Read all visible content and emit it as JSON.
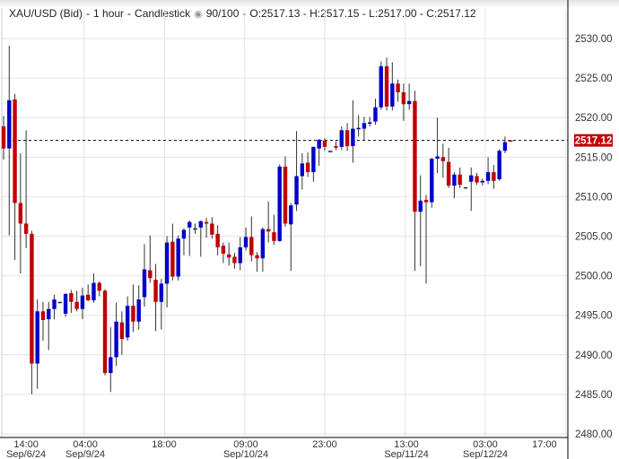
{
  "header": {
    "symbol": "XAU/USD (Bid)",
    "interval": "1 hour",
    "chart_style": "Candlestick",
    "visibility_icon": "eye-icon",
    "range": "90/100",
    "ohlc": "O:2517.13 - H:2517.15 - L:2517.00 - C:2517.12"
  },
  "colors": {
    "up": "#0000cc",
    "down": "#c00000",
    "wick": "#333333",
    "grid": "#e4e4e4",
    "last_price_bg": "#c00000"
  },
  "chart_data": {
    "type": "candlestick",
    "title": "XAU/USD (Bid) - 1 hour - Candlestick",
    "ylim": [
      2480,
      2532
    ],
    "yticks": [
      "2530.00",
      "2525.00",
      "2520.00",
      "2515.00",
      "2510.00",
      "2505.00",
      "2500.00",
      "2495.00",
      "2490.00",
      "2485.00",
      "2480.00"
    ],
    "ytick_values": [
      2530,
      2525,
      2520,
      2515,
      2510,
      2505,
      2500,
      2495,
      2490,
      2485,
      2480
    ],
    "xticks": [
      {
        "time": "14:00",
        "date": "Sep/6/24",
        "index": 4
      },
      {
        "time": "04:00",
        "date": "Sep/9/24",
        "index": 14.5
      },
      {
        "time": "18:00",
        "date": "",
        "index": 28.5
      },
      {
        "time": "09:00",
        "date": "Sep/10/24",
        "index": 43
      },
      {
        "time": "23:00",
        "date": "",
        "index": 57
      },
      {
        "time": "13:00",
        "date": "Sep/11/24",
        "index": 71.5
      },
      {
        "time": "03:00",
        "date": "Sep/12/24",
        "index": 85.5
      },
      {
        "time": "17:00",
        "date": "",
        "index": 96
      }
    ],
    "gridline_indices": [
      14.3,
      28.6,
      42.8,
      57,
      71.3,
      85.5,
      99.8
    ],
    "last_price": 2517.12,
    "last_price_label": "2517.12",
    "candles": [
      [
        2518.9,
        2520.2,
        2514.7,
        2516.1
      ],
      [
        2516.1,
        2529.1,
        2505.1,
        2522.2
      ],
      [
        2522.3,
        2523.0,
        2502.0,
        2509.2
      ],
      [
        2509.2,
        2515.5,
        2500.3,
        2506.6
      ],
      [
        2506.6,
        2518.4,
        2503.5,
        2505.3
      ],
      [
        2505.3,
        2505.7,
        2485.0,
        2488.9
      ],
      [
        2488.9,
        2497.0,
        2485.7,
        2495.5
      ],
      [
        2495.5,
        2496.7,
        2491.8,
        2494.4
      ],
      [
        2494.5,
        2496.7,
        2490.6,
        2495.8
      ],
      [
        2495.8,
        2497.6,
        2494.5,
        2497.0
      ],
      [
        2496.7,
        2496.7,
        2496.7,
        2496.7
      ],
      [
        2495.2,
        2497.8,
        2494.8,
        2497.7
      ],
      [
        2497.8,
        2498.2,
        2495.3,
        2496.7
      ],
      [
        2496.7,
        2498.1,
        2495.5,
        2495.8
      ],
      [
        2495.8,
        2498.5,
        2494.5,
        2497.5
      ],
      [
        2497.6,
        2498.9,
        2496.8,
        2496.9
      ],
      [
        2496.9,
        2500.3,
        2496.6,
        2499.1
      ],
      [
        2499.1,
        2499.3,
        2497.4,
        2498.1
      ],
      [
        2498.1,
        2498.3,
        2487.4,
        2487.7
      ],
      [
        2487.7,
        2493.5,
        2485.3,
        2489.7
      ],
      [
        2489.7,
        2496.6,
        2488.6,
        2494.2
      ],
      [
        2494.1,
        2495.5,
        2490.0,
        2492.0
      ],
      [
        2492.2,
        2497.4,
        2491.8,
        2496.2
      ],
      [
        2496.2,
        2498.9,
        2492.9,
        2494.2
      ],
      [
        2494.2,
        2498.8,
        2493.2,
        2497.0
      ],
      [
        2497.3,
        2504.0,
        2496.1,
        2500.8
      ],
      [
        2500.7,
        2505.1,
        2499.1,
        2499.7
      ],
      [
        2499.5,
        2501.5,
        2493.0,
        2496.7
      ],
      [
        2496.7,
        2499.6,
        2493.2,
        2499.0
      ],
      [
        2499.0,
        2505.0,
        2496.0,
        2504.2
      ],
      [
        2504.3,
        2506.6,
        2499.4,
        2499.9
      ],
      [
        2499.9,
        2505.1,
        2499.4,
        2504.7
      ],
      [
        2504.7,
        2506.0,
        2502.6,
        2505.8
      ],
      [
        2506.1,
        2507.0,
        2502.5,
        2506.8
      ],
      [
        2506.0,
        2506.6,
        2505.3,
        2506.0
      ],
      [
        2506.1,
        2507.0,
        2502.4,
        2506.9
      ],
      [
        2506.8,
        2507.3,
        2504.8,
        2506.6
      ],
      [
        2506.6,
        2507.4,
        2504.7,
        2505.2
      ],
      [
        2505.3,
        2506.4,
        2502.6,
        2503.6
      ],
      [
        2503.8,
        2504.2,
        2501.6,
        2502.8
      ],
      [
        2502.7,
        2504.2,
        2501.3,
        2502.3
      ],
      [
        2502.4,
        2502.9,
        2500.9,
        2501.6
      ],
      [
        2501.6,
        2504.9,
        2500.7,
        2503.6
      ],
      [
        2503.6,
        2506.1,
        2503.2,
        2504.9
      ],
      [
        2504.9,
        2507.5,
        2501.8,
        2502.6
      ],
      [
        2502.6,
        2503.0,
        2500.5,
        2502.2
      ],
      [
        2502.2,
        2506.1,
        2500.5,
        2505.9
      ],
      [
        2505.9,
        2509.4,
        2504.2,
        2505.6
      ],
      [
        2505.5,
        2507.7,
        2503.9,
        2504.4
      ],
      [
        2504.4,
        2514.1,
        2504.3,
        2513.8
      ],
      [
        2513.8,
        2515.1,
        2506.2,
        2506.6
      ],
      [
        2506.5,
        2509.2,
        2500.6,
        2508.9
      ],
      [
        2509.0,
        2518.3,
        2508.2,
        2512.6
      ],
      [
        2512.6,
        2515.5,
        2510.9,
        2514.2
      ],
      [
        2514.3,
        2515.6,
        2512.5,
        2513.1
      ],
      [
        2513.1,
        2516.3,
        2511.9,
        2516.3
      ],
      [
        2516.1,
        2517.3,
        2513.9,
        2517.2
      ],
      [
        2517.1,
        2517.4,
        2515.8,
        2516.3
      ],
      [
        2515.8,
        2515.8,
        2515.8,
        2515.8
      ],
      [
        2516.4,
        2517.0,
        2515.9,
        2516.2
      ],
      [
        2516.3,
        2518.9,
        2515.9,
        2518.4
      ],
      [
        2518.4,
        2519.3,
        2515.8,
        2516.4
      ],
      [
        2516.4,
        2522.2,
        2514.3,
        2518.6
      ],
      [
        2518.6,
        2520.3,
        2517.6,
        2518.7
      ],
      [
        2518.6,
        2520.1,
        2517.2,
        2519.3
      ],
      [
        2519.3,
        2520.1,
        2518.9,
        2519.4
      ],
      [
        2519.5,
        2522.4,
        2519.1,
        2521.3
      ],
      [
        2521.3,
        2527.1,
        2521.0,
        2526.5
      ],
      [
        2526.5,
        2527.6,
        2520.9,
        2521.4
      ],
      [
        2521.4,
        2527.0,
        2520.9,
        2524.3
      ],
      [
        2524.3,
        2524.8,
        2522.0,
        2523.2
      ],
      [
        2523.2,
        2524.3,
        2519.6,
        2521.7
      ],
      [
        2521.7,
        2524.3,
        2521.0,
        2522.1
      ],
      [
        2522.1,
        2523.4,
        2500.6,
        2508.1
      ],
      [
        2508.1,
        2512.7,
        2501.2,
        2509.5
      ],
      [
        2509.6,
        2510.2,
        2499.0,
        2509.3
      ],
      [
        2509.3,
        2514.9,
        2508.6,
        2514.8
      ],
      [
        2514.8,
        2520.0,
        2513.0,
        2515.1
      ],
      [
        2515.0,
        2516.7,
        2512.4,
        2514.5
      ],
      [
        2514.4,
        2516.2,
        2511.1,
        2511.4
      ],
      [
        2511.4,
        2513.1,
        2509.8,
        2512.8
      ],
      [
        2512.8,
        2513.7,
        2511.1,
        2511.5
      ],
      [
        2511.2,
        2511.2,
        2511.2,
        2511.2
      ],
      [
        2511.9,
        2513.7,
        2508.2,
        2512.7
      ],
      [
        2512.6,
        2513.0,
        2511.5,
        2511.8
      ],
      [
        2511.8,
        2512.3,
        2511.4,
        2512.0
      ],
      [
        2512.0,
        2515.0,
        2511.6,
        2513.1
      ],
      [
        2513.1,
        2514.0,
        2511.0,
        2512.0
      ],
      [
        2512.2,
        2516.0,
        2512.0,
        2515.8
      ],
      [
        2515.8,
        2517.6,
        2515.5,
        2516.9
      ],
      [
        2517.13,
        2517.15,
        2517.0,
        2517.12
      ]
    ]
  }
}
